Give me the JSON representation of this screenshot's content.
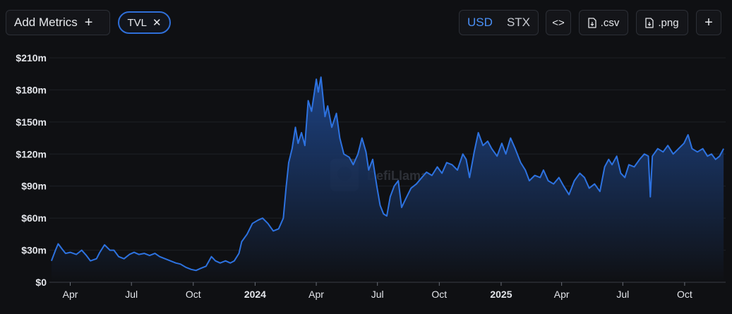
{
  "toolbar": {
    "add_metrics_label": "Add Metrics",
    "metric_pill_label": "TVL",
    "currency_options": [
      "USD",
      "STX"
    ],
    "currency_selected": "USD",
    "csv_label": ".csv",
    "png_label": ".png"
  },
  "colors": {
    "background": "#0f1013",
    "line": "#2d72e0",
    "area_top": "#1f4a94",
    "area_bottom": "#0f1013",
    "accent": "#4a8ff5",
    "pill_border": "#2f6fd8"
  },
  "watermark": "DefiLlama",
  "chart_data": {
    "type": "area",
    "title": "",
    "xlabel": "",
    "ylabel": "",
    "ylim": [
      0,
      210
    ],
    "y_ticks": [
      {
        "value": 0,
        "label": "$0"
      },
      {
        "value": 30,
        "label": "$30m"
      },
      {
        "value": 60,
        "label": "$60m"
      },
      {
        "value": 90,
        "label": "$90m"
      },
      {
        "value": 120,
        "label": "$120m"
      },
      {
        "value": 150,
        "label": "$150m"
      },
      {
        "value": 180,
        "label": "$180m"
      },
      {
        "value": 210,
        "label": "$210m"
      }
    ],
    "x_range": [
      "2023-03-01",
      "2025-12-01"
    ],
    "x_ticks": [
      {
        "date": "2023-04-01",
        "label": "Apr",
        "bold": false
      },
      {
        "date": "2023-07-01",
        "label": "Jul",
        "bold": false
      },
      {
        "date": "2023-10-01",
        "label": "Oct",
        "bold": false
      },
      {
        "date": "2024-01-01",
        "label": "2024",
        "bold": true
      },
      {
        "date": "2024-04-01",
        "label": "Apr",
        "bold": false
      },
      {
        "date": "2024-07-01",
        "label": "Jul",
        "bold": false
      },
      {
        "date": "2024-10-01",
        "label": "Oct",
        "bold": false
      },
      {
        "date": "2025-01-01",
        "label": "2025",
        "bold": true
      },
      {
        "date": "2025-04-01",
        "label": "Apr",
        "bold": false
      },
      {
        "date": "2025-07-01",
        "label": "Jul",
        "bold": false
      },
      {
        "date": "2025-10-01",
        "label": "Oct",
        "bold": false
      }
    ],
    "series": [
      {
        "name": "TVL",
        "unit": "USD millions",
        "points": [
          [
            "2023-03-04",
            20
          ],
          [
            "2023-03-10",
            30
          ],
          [
            "2023-03-14",
            36
          ],
          [
            "2023-03-20",
            31
          ],
          [
            "2023-03-25",
            27
          ],
          [
            "2023-04-01",
            28
          ],
          [
            "2023-04-10",
            26
          ],
          [
            "2023-04-18",
            30
          ],
          [
            "2023-04-25",
            25
          ],
          [
            "2023-05-01",
            20
          ],
          [
            "2023-05-10",
            22
          ],
          [
            "2023-05-15",
            28
          ],
          [
            "2023-05-22",
            35
          ],
          [
            "2023-05-30",
            30
          ],
          [
            "2023-06-05",
            30
          ],
          [
            "2023-06-12",
            24
          ],
          [
            "2023-06-20",
            22
          ],
          [
            "2023-06-28",
            26
          ],
          [
            "2023-07-05",
            28
          ],
          [
            "2023-07-12",
            26
          ],
          [
            "2023-07-20",
            27
          ],
          [
            "2023-07-28",
            25
          ],
          [
            "2023-08-05",
            27
          ],
          [
            "2023-08-12",
            24
          ],
          [
            "2023-08-20",
            22
          ],
          [
            "2023-08-28",
            20
          ],
          [
            "2023-09-05",
            18
          ],
          [
            "2023-09-12",
            17
          ],
          [
            "2023-09-20",
            14
          ],
          [
            "2023-09-28",
            12
          ],
          [
            "2023-10-05",
            11
          ],
          [
            "2023-10-12",
            13
          ],
          [
            "2023-10-20",
            15
          ],
          [
            "2023-10-28",
            24
          ],
          [
            "2023-11-03",
            20
          ],
          [
            "2023-11-10",
            18
          ],
          [
            "2023-11-18",
            20
          ],
          [
            "2023-11-25",
            18
          ],
          [
            "2023-12-01",
            20
          ],
          [
            "2023-12-08",
            27
          ],
          [
            "2023-12-12",
            38
          ],
          [
            "2023-12-20",
            45
          ],
          [
            "2023-12-28",
            55
          ],
          [
            "2024-01-05",
            58
          ],
          [
            "2024-01-12",
            60
          ],
          [
            "2024-01-20",
            55
          ],
          [
            "2024-01-28",
            48
          ],
          [
            "2024-02-05",
            50
          ],
          [
            "2024-02-12",
            60
          ],
          [
            "2024-02-16",
            88
          ],
          [
            "2024-02-20",
            112
          ],
          [
            "2024-02-25",
            125
          ],
          [
            "2024-03-01",
            145
          ],
          [
            "2024-03-05",
            130
          ],
          [
            "2024-03-10",
            140
          ],
          [
            "2024-03-15",
            128
          ],
          [
            "2024-03-20",
            170
          ],
          [
            "2024-03-25",
            160
          ],
          [
            "2024-04-01",
            190
          ],
          [
            "2024-04-04",
            178
          ],
          [
            "2024-04-08",
            192
          ],
          [
            "2024-04-14",
            155
          ],
          [
            "2024-04-18",
            165
          ],
          [
            "2024-04-24",
            145
          ],
          [
            "2024-05-01",
            158
          ],
          [
            "2024-05-06",
            135
          ],
          [
            "2024-05-12",
            120
          ],
          [
            "2024-05-20",
            117
          ],
          [
            "2024-05-26",
            110
          ],
          [
            "2024-06-02",
            120
          ],
          [
            "2024-06-08",
            135
          ],
          [
            "2024-06-14",
            122
          ],
          [
            "2024-06-18",
            105
          ],
          [
            "2024-06-24",
            115
          ],
          [
            "2024-06-30",
            90
          ],
          [
            "2024-07-05",
            72
          ],
          [
            "2024-07-10",
            64
          ],
          [
            "2024-07-15",
            62
          ],
          [
            "2024-07-20",
            80
          ],
          [
            "2024-07-26",
            90
          ],
          [
            "2024-08-01",
            95
          ],
          [
            "2024-08-06",
            70
          ],
          [
            "2024-08-12",
            78
          ],
          [
            "2024-08-20",
            88
          ],
          [
            "2024-08-28",
            92
          ],
          [
            "2024-09-05",
            98
          ],
          [
            "2024-09-12",
            103
          ],
          [
            "2024-09-20",
            100
          ],
          [
            "2024-09-28",
            108
          ],
          [
            "2024-10-05",
            102
          ],
          [
            "2024-10-12",
            112
          ],
          [
            "2024-10-20",
            110
          ],
          [
            "2024-10-28",
            105
          ],
          [
            "2024-11-05",
            120
          ],
          [
            "2024-11-10",
            115
          ],
          [
            "2024-11-15",
            98
          ],
          [
            "2024-11-22",
            122
          ],
          [
            "2024-11-28",
            140
          ],
          [
            "2024-12-05",
            128
          ],
          [
            "2024-12-12",
            132
          ],
          [
            "2024-12-18",
            125
          ],
          [
            "2024-12-26",
            118
          ],
          [
            "2025-01-02",
            130
          ],
          [
            "2025-01-08",
            120
          ],
          [
            "2025-01-15",
            135
          ],
          [
            "2025-01-22",
            125
          ],
          [
            "2025-01-30",
            112
          ],
          [
            "2025-02-06",
            105
          ],
          [
            "2025-02-12",
            95
          ],
          [
            "2025-02-20",
            100
          ],
          [
            "2025-02-28",
            98
          ],
          [
            "2025-03-05",
            105
          ],
          [
            "2025-03-12",
            95
          ],
          [
            "2025-03-20",
            92
          ],
          [
            "2025-03-28",
            98
          ],
          [
            "2025-04-04",
            90
          ],
          [
            "2025-04-12",
            82
          ],
          [
            "2025-04-20",
            95
          ],
          [
            "2025-04-28",
            102
          ],
          [
            "2025-05-05",
            98
          ],
          [
            "2025-05-12",
            88
          ],
          [
            "2025-05-20",
            92
          ],
          [
            "2025-05-28",
            85
          ],
          [
            "2025-06-04",
            108
          ],
          [
            "2025-06-10",
            115
          ],
          [
            "2025-06-15",
            110
          ],
          [
            "2025-06-22",
            118
          ],
          [
            "2025-06-28",
            102
          ],
          [
            "2025-07-04",
            98
          ],
          [
            "2025-07-10",
            110
          ],
          [
            "2025-07-18",
            108
          ],
          [
            "2025-07-26",
            115
          ],
          [
            "2025-08-02",
            120
          ],
          [
            "2025-08-08",
            118
          ],
          [
            "2025-08-11",
            80
          ],
          [
            "2025-08-14",
            118
          ],
          [
            "2025-08-22",
            125
          ],
          [
            "2025-08-30",
            122
          ],
          [
            "2025-09-06",
            128
          ],
          [
            "2025-09-14",
            120
          ],
          [
            "2025-09-22",
            125
          ],
          [
            "2025-09-30",
            130
          ],
          [
            "2025-10-06",
            138
          ],
          [
            "2025-10-12",
            125
          ],
          [
            "2025-10-20",
            122
          ],
          [
            "2025-10-28",
            125
          ],
          [
            "2025-11-04",
            118
          ],
          [
            "2025-11-10",
            120
          ],
          [
            "2025-11-16",
            115
          ],
          [
            "2025-11-22",
            118
          ],
          [
            "2025-11-28",
            125
          ]
        ]
      }
    ],
    "grid": {
      "horizontal": true,
      "vertical": false
    },
    "legend": "none"
  }
}
